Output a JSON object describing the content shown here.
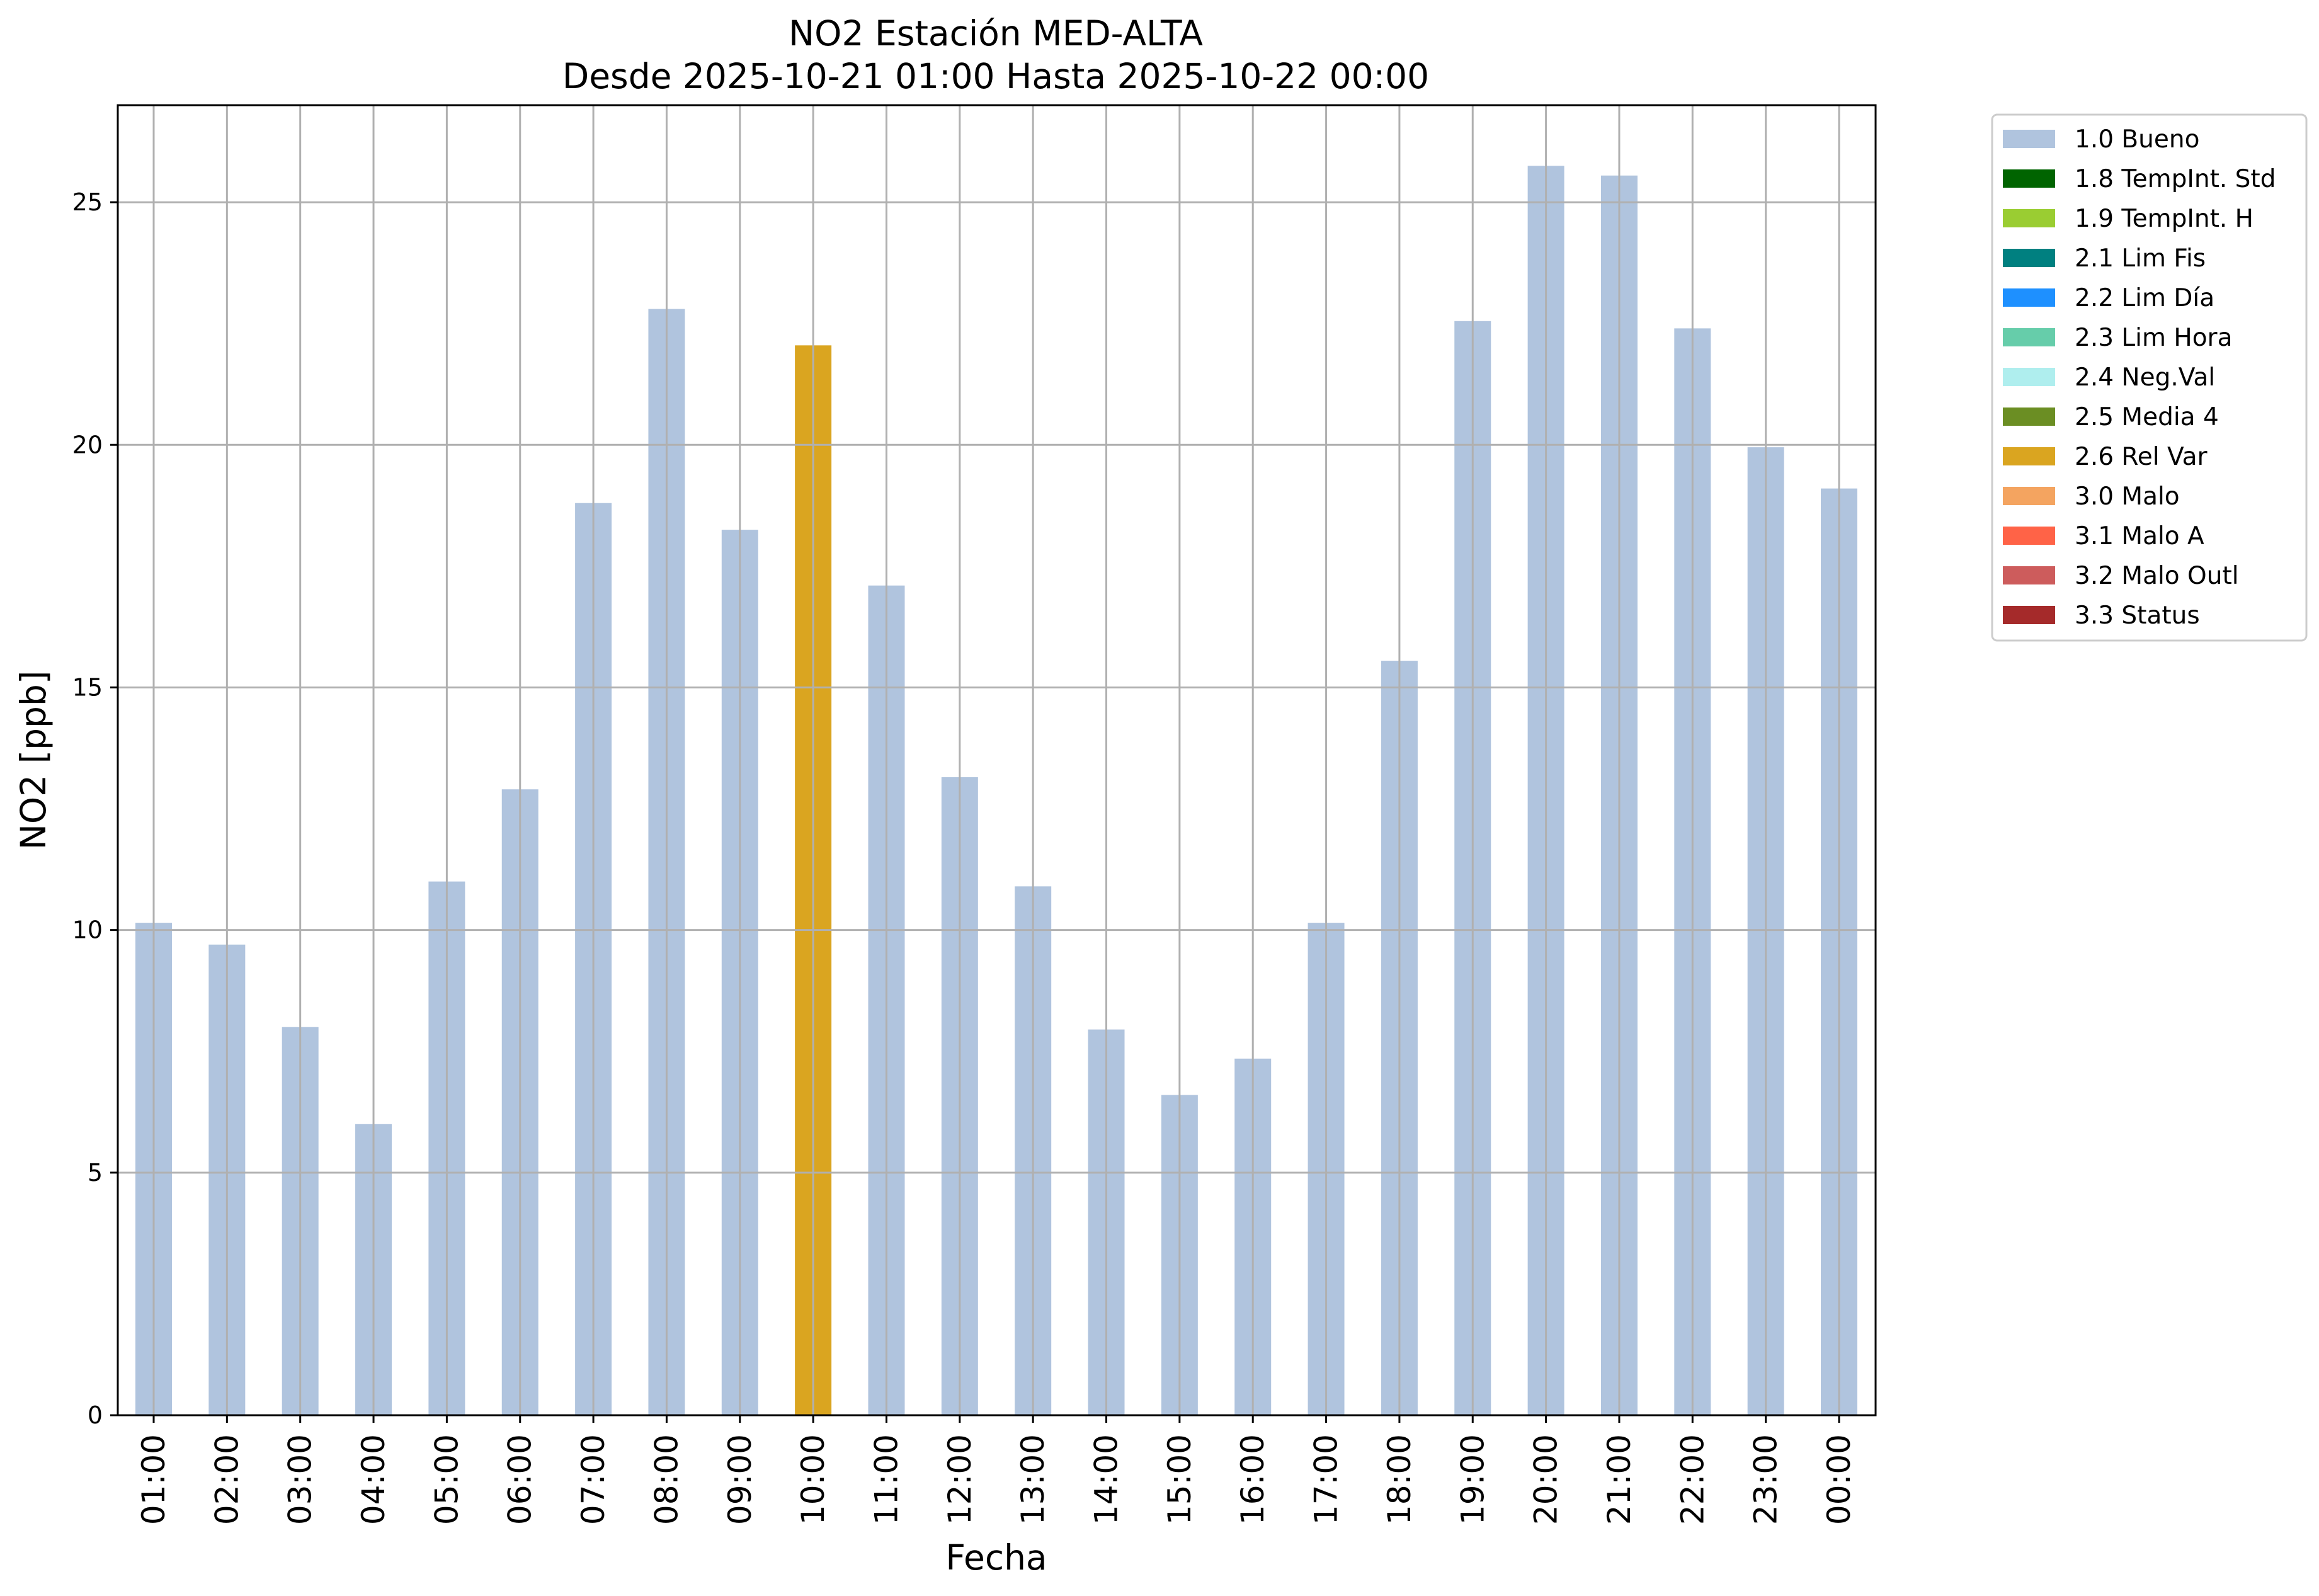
{
  "chart_data": {
    "type": "bar",
    "title": "NO2 Estación MED-ALTA",
    "subtitle": "Desde 2025-10-21 01:00 Hasta 2025-10-22 00:00",
    "xlabel": "Fecha",
    "ylabel": "NO2 [ppb]",
    "ylim": [
      0,
      27
    ],
    "yticks": [
      0,
      5,
      10,
      15,
      20,
      25
    ],
    "grid": true,
    "legend_position": "outside-top-right",
    "categories": [
      "01:00",
      "02:00",
      "03:00",
      "04:00",
      "05:00",
      "06:00",
      "07:00",
      "08:00",
      "09:00",
      "10:00",
      "11:00",
      "12:00",
      "13:00",
      "14:00",
      "15:00",
      "16:00",
      "17:00",
      "18:00",
      "19:00",
      "20:00",
      "21:00",
      "22:00",
      "23:00",
      "00:00"
    ],
    "values": [
      10.15,
      9.7,
      8.0,
      6.0,
      11.0,
      12.9,
      18.8,
      22.8,
      18.25,
      22.05,
      17.1,
      13.15,
      10.9,
      7.95,
      6.6,
      7.35,
      10.15,
      15.55,
      22.55,
      25.75,
      25.55,
      22.4,
      19.95,
      19.1
    ],
    "flags": [
      "1.0",
      "1.0",
      "1.0",
      "1.0",
      "1.0",
      "1.0",
      "1.0",
      "1.0",
      "1.0",
      "2.6",
      "1.0",
      "1.0",
      "1.0",
      "1.0",
      "1.0",
      "1.0",
      "1.0",
      "1.0",
      "1.0",
      "1.0",
      "1.0",
      "1.0",
      "1.0",
      "1.0"
    ],
    "legend": [
      {
        "code": "1.0",
        "label": "1.0 Bueno",
        "color": "#b0c4de"
      },
      {
        "code": "1.8",
        "label": "1.8 TempInt. Std",
        "color": "#006400"
      },
      {
        "code": "1.9",
        "label": "1.9 TempInt. H",
        "color": "#9acd32"
      },
      {
        "code": "2.1",
        "label": "2.1 Lim Fis",
        "color": "#008080"
      },
      {
        "code": "2.2",
        "label": "2.2 Lim Día",
        "color": "#1e90ff"
      },
      {
        "code": "2.3",
        "label": "2.3 Lim Hora",
        "color": "#66cdaa"
      },
      {
        "code": "2.4",
        "label": "2.4 Neg.Val",
        "color": "#afeeee"
      },
      {
        "code": "2.5",
        "label": "2.5 Media 4",
        "color": "#6b8e23"
      },
      {
        "code": "2.6",
        "label": "2.6 Rel Var",
        "color": "#daa520"
      },
      {
        "code": "3.0",
        "label": "3.0 Malo",
        "color": "#f4a460"
      },
      {
        "code": "3.1",
        "label": "3.1 Malo A",
        "color": "#ff6347"
      },
      {
        "code": "3.2",
        "label": "3.2 Malo Outl",
        "color": "#cd5c5c"
      },
      {
        "code": "3.3",
        "label": "3.3 Status",
        "color": "#a52a2a"
      }
    ]
  }
}
